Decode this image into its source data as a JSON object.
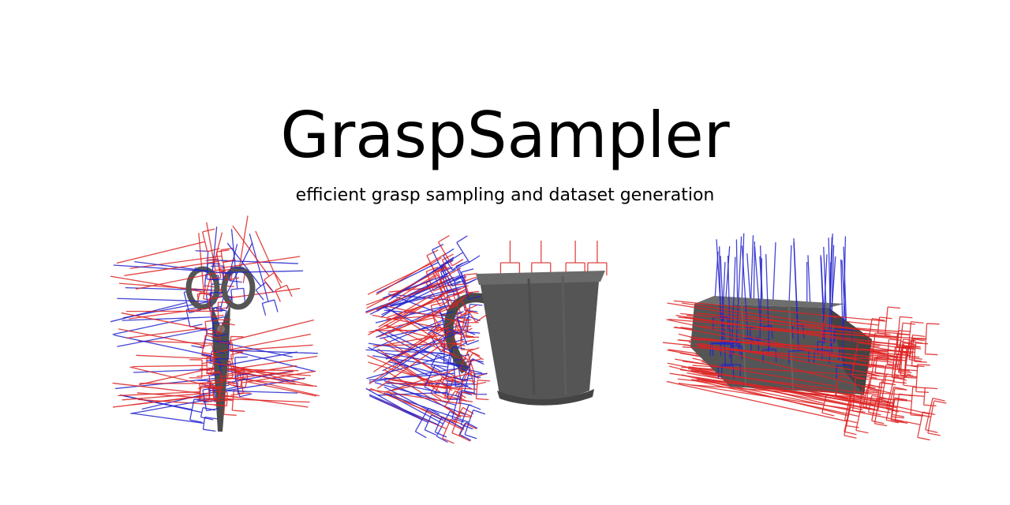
{
  "title": "GraspSampler",
  "subtitle": "efficient grasp sampling and dataset generation",
  "colors": {
    "background": "#ffffff",
    "text": "#000000",
    "grasp_red": "#dd2222",
    "grasp_blue": "#2222cc",
    "object_gray": "#555555"
  },
  "figures": [
    {
      "object": "scissors-icon"
    },
    {
      "object": "mug-icon"
    },
    {
      "object": "boxes-icon"
    }
  ]
}
